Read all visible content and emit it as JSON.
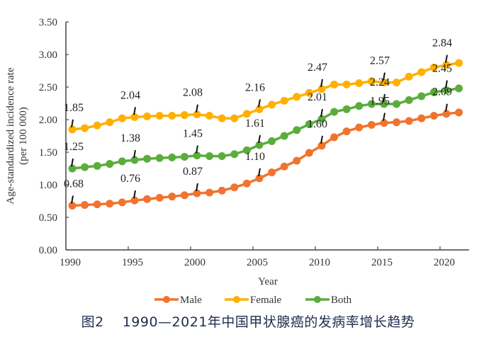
{
  "chart_data": {
    "type": "line",
    "title": "",
    "xlabel": "Year",
    "ylabel": "Age-standardized incidence rate",
    "ylabel_unit": "(per 100 000)",
    "xlim": [
      1990,
      2021
    ],
    "ylim": [
      0,
      3.5
    ],
    "grid": false,
    "legend_position": "bottom",
    "x_ticks": [
      "1990",
      "1995",
      "2000",
      "2005",
      "2010",
      "2015",
      "2020"
    ],
    "y_ticks": [
      "0.00",
      "0.50",
      "1.00",
      "1.50",
      "2.00",
      "2.50",
      "3.00",
      "3.50"
    ],
    "x": [
      1990,
      1991,
      1992,
      1993,
      1994,
      1995,
      1996,
      1997,
      1998,
      1999,
      2000,
      2001,
      2002,
      2003,
      2004,
      2005,
      2006,
      2007,
      2008,
      2009,
      2010,
      2011,
      2012,
      2013,
      2014,
      2015,
      2016,
      2017,
      2018,
      2019,
      2020,
      2021
    ],
    "series": [
      {
        "name": "Male",
        "color": "#f07430",
        "values": [
          0.68,
          0.69,
          0.7,
          0.71,
          0.73,
          0.76,
          0.78,
          0.8,
          0.82,
          0.84,
          0.87,
          0.88,
          0.91,
          0.96,
          1.02,
          1.1,
          1.19,
          1.28,
          1.37,
          1.49,
          1.6,
          1.73,
          1.82,
          1.88,
          1.92,
          1.95,
          1.96,
          1.98,
          2.02,
          2.06,
          2.09,
          2.11
        ],
        "labels": [
          {
            "year": 1990,
            "text": "0.68"
          },
          {
            "year": 1995,
            "text": "0.76"
          },
          {
            "year": 2000,
            "text": "0.87"
          },
          {
            "year": 2005,
            "text": "1.10"
          },
          {
            "year": 2010,
            "text": "1.60"
          },
          {
            "year": 2015,
            "text": "1.95"
          },
          {
            "year": 2020,
            "text": "2.09"
          }
        ]
      },
      {
        "name": "Female",
        "color": "#ffb000",
        "values": [
          1.85,
          1.87,
          1.91,
          1.96,
          2.02,
          2.04,
          2.05,
          2.06,
          2.06,
          2.07,
          2.08,
          2.06,
          2.02,
          2.02,
          2.09,
          2.16,
          2.23,
          2.29,
          2.35,
          2.41,
          2.47,
          2.54,
          2.54,
          2.56,
          2.59,
          2.57,
          2.57,
          2.66,
          2.73,
          2.8,
          2.84,
          2.87
        ],
        "labels": [
          {
            "year": 1990,
            "text": "1.85"
          },
          {
            "year": 1995,
            "text": "2.04"
          },
          {
            "year": 2000,
            "text": "2.08"
          },
          {
            "year": 2005,
            "text": "2.16"
          },
          {
            "year": 2010,
            "text": "2.47"
          },
          {
            "year": 2015,
            "text": "2.57"
          },
          {
            "year": 2020,
            "text": "2.84"
          }
        ]
      },
      {
        "name": "Both",
        "color": "#5aad3c",
        "values": [
          1.25,
          1.27,
          1.29,
          1.32,
          1.36,
          1.38,
          1.4,
          1.41,
          1.42,
          1.43,
          1.45,
          1.44,
          1.44,
          1.47,
          1.53,
          1.61,
          1.67,
          1.75,
          1.84,
          1.93,
          2.01,
          2.12,
          2.16,
          2.21,
          2.24,
          2.24,
          2.24,
          2.3,
          2.36,
          2.42,
          2.45,
          2.48
        ],
        "labels": [
          {
            "year": 1990,
            "text": "1.25"
          },
          {
            "year": 1995,
            "text": "1.38"
          },
          {
            "year": 2000,
            "text": "1.45"
          },
          {
            "year": 2005,
            "text": "1.61"
          },
          {
            "year": 2010,
            "text": "2.01"
          },
          {
            "year": 2015,
            "text": "2.24"
          },
          {
            "year": 2020,
            "text": "2.45"
          }
        ]
      }
    ]
  },
  "caption": "图2　 1990—2021年中国甲状腺癌的发病率增长趋势"
}
